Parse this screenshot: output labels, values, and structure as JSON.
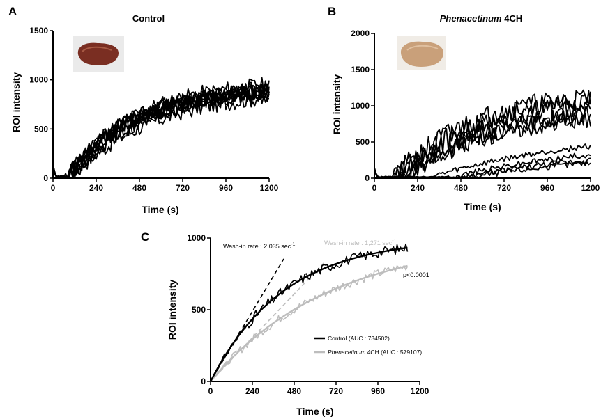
{
  "chart_data": [
    {
      "type": "line",
      "panel_label": "A",
      "title": "Control",
      "xlabel": "Time (s)",
      "ylabel": "ROI intensity",
      "xlim": [
        0,
        1200
      ],
      "ylim": [
        0,
        1500
      ],
      "x_ticks": [
        0,
        240,
        480,
        720,
        960,
        1200
      ],
      "y_ticks": [
        0,
        500,
        1000,
        1500
      ],
      "grid": false,
      "image": "excised liver specimen (control)",
      "curves": [
        {
          "onset": 70,
          "plateau": 1000,
          "tau": 380,
          "noise": 80,
          "seed": 11
        },
        {
          "onset": 75,
          "plateau": 960,
          "tau": 360,
          "noise": 80,
          "seed": 12
        },
        {
          "onset": 80,
          "plateau": 930,
          "tau": 350,
          "noise": 80,
          "seed": 13
        },
        {
          "onset": 70,
          "plateau": 900,
          "tau": 340,
          "noise": 80,
          "seed": 14
        },
        {
          "onset": 85,
          "plateau": 950,
          "tau": 420,
          "noise": 80,
          "seed": 15
        },
        {
          "onset": 75,
          "plateau": 1000,
          "tau": 500,
          "noise": 80,
          "seed": 16
        },
        {
          "onset": 95,
          "plateau": 900,
          "tau": 460,
          "noise": 80,
          "seed": 17
        },
        {
          "onset": 80,
          "plateau": 880,
          "tau": 320,
          "noise": 80,
          "seed": 18
        },
        {
          "onset": 90,
          "plateau": 980,
          "tau": 440,
          "noise": 80,
          "seed": 19
        },
        {
          "onset": 100,
          "plateau": 850,
          "tau": 300,
          "noise": 80,
          "seed": 20
        }
      ]
    },
    {
      "type": "line",
      "panel_label": "B",
      "title_italic": "Phenacetinum",
      "title_rest": " 4CH",
      "xlabel": "Time (s)",
      "ylabel": "ROI intensity",
      "xlim": [
        0,
        1200
      ],
      "ylim": [
        0,
        2000
      ],
      "x_ticks": [
        0,
        240,
        480,
        720,
        960,
        1200
      ],
      "y_ticks": [
        0,
        500,
        1000,
        1500,
        2000
      ],
      "grid": false,
      "image": "excised liver specimen (Phenacetinum 4CH)",
      "curves": [
        {
          "onset": 110,
          "plateau": 1200,
          "tau": 420,
          "noise": 160,
          "seed": 21
        },
        {
          "onset": 120,
          "plateau": 1250,
          "tau": 500,
          "noise": 150,
          "seed": 22
        },
        {
          "onset": 100,
          "plateau": 1150,
          "tau": 560,
          "noise": 150,
          "seed": 23
        },
        {
          "onset": 150,
          "plateau": 1100,
          "tau": 600,
          "noise": 140,
          "seed": 24
        },
        {
          "onset": 130,
          "plateau": 1000,
          "tau": 520,
          "noise": 130,
          "seed": 25
        },
        {
          "onset": 160,
          "plateau": 900,
          "tau": 460,
          "noise": 120,
          "seed": 26
        },
        {
          "onset": 300,
          "plateau": 700,
          "tau": 900,
          "noise": 40,
          "seed": 27
        },
        {
          "onset": 400,
          "plateau": 600,
          "tau": 1000,
          "noise": 40,
          "seed": 28
        },
        {
          "onset": 450,
          "plateau": 500,
          "tau": 1100,
          "noise": 40,
          "seed": 29
        },
        {
          "onset": 500,
          "plateau": 450,
          "tau": 1100,
          "noise": 40,
          "seed": 30
        }
      ]
    },
    {
      "type": "line",
      "panel_label": "C",
      "xlabel": "Time (s)",
      "ylabel": "ROI intensity",
      "xlim": [
        0,
        1200
      ],
      "ylim": [
        0,
        1000
      ],
      "x_ticks": [
        0,
        240,
        480,
        720,
        960,
        1200
      ],
      "y_ticks": [
        0,
        500,
        1000
      ],
      "grid": false,
      "series": [
        {
          "name": "Control (AUC : 734502)",
          "color": "#000000",
          "plateau": 1000,
          "tau": 420,
          "end": 1130,
          "noise": 35,
          "seed": 31
        },
        {
          "name_italic": "Phenacetinum",
          "name_rest": " 4CH (AUC : 579107)",
          "color": "#bdbdbd",
          "plateau": 1000,
          "tau": 690,
          "end": 1130,
          "noise": 30,
          "seed": 32
        }
      ],
      "annotations": {
        "control_washin": {
          "label": "Wash-in rate : 2,035 sec",
          "sup": "-1",
          "color": "#000000",
          "line_from": [
            0,
            0
          ],
          "line_to": [
            420,
            855
          ]
        },
        "phen_washin": {
          "label": "Wash-in rate : 1,271 sec",
          "sup": "-1",
          "color": "#bdbdbd",
          "line_from": [
            0,
            0
          ],
          "line_to": [
            650,
            826
          ]
        },
        "pvalue": "p<0.0001"
      }
    }
  ]
}
